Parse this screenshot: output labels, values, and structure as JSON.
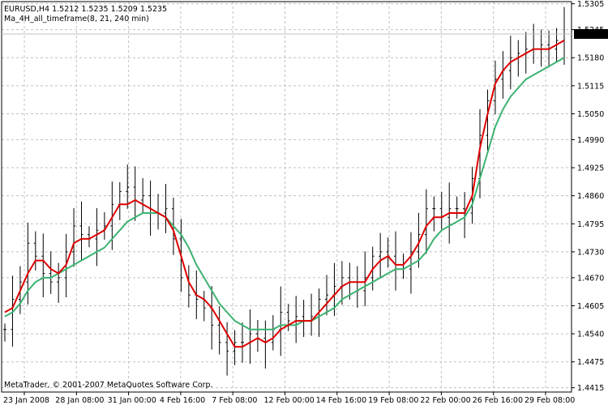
{
  "window": {
    "symbol_line": "EURUSD,H4  1.5212 1.5235 1.5209 1.5235",
    "indicator_line": "Ma_4H_all_timeframe(8, 21, 240 min)",
    "copyright": "MetaTrader, © 2001-2007 MetaQuotes Software Corp."
  },
  "colors": {
    "background": "#ffffff",
    "grid": "#c0c0c0",
    "bars": "#000000",
    "fast_ma": "#e00000",
    "slow_ma": "#3cb371",
    "price_line": "#c0c0c0",
    "price_tag_bg": "#000000",
    "price_tag_fg": "#ffffff"
  },
  "chart_data": {
    "type": "line",
    "symbol": "EURUSD",
    "timeframe": "H4",
    "ylim": [
      1.4405,
      1.531
    ],
    "y_ticks": [
      "1.5305",
      "1.5245",
      "1.5180",
      "1.5115",
      "1.5050",
      "1.4990",
      "1.4925",
      "1.4860",
      "1.4795",
      "1.4730",
      "1.4670",
      "1.4605",
      "1.4540",
      "1.4475",
      "1.4415"
    ],
    "x_ticks": [
      "23 Jan 2008",
      "28 Jan 08:00",
      "31 Jan 00:00",
      "4 Feb 16:00",
      "7 Feb 08:00",
      "12 Feb 00:00",
      "14 Feb 16:00",
      "19 Feb 08:00",
      "22 Feb 00:00",
      "26 Feb 16:00",
      "29 Feb 08:00"
    ],
    "current_price": "1.5235",
    "grid": true,
    "series": [
      {
        "name": "fast_ma",
        "color": "#e00000",
        "values": [
          1.459,
          1.46,
          1.464,
          1.468,
          1.471,
          1.471,
          1.469,
          1.468,
          1.47,
          1.475,
          1.476,
          1.476,
          1.477,
          1.478,
          1.481,
          1.484,
          1.484,
          1.485,
          1.484,
          1.483,
          1.482,
          1.481,
          1.478,
          1.472,
          1.466,
          1.463,
          1.462,
          1.46,
          1.457,
          1.454,
          1.451,
          1.451,
          1.452,
          1.453,
          1.452,
          1.453,
          1.455,
          1.456,
          1.457,
          1.457,
          1.457,
          1.459,
          1.461,
          1.463,
          1.465,
          1.466,
          1.466,
          1.466,
          1.469,
          1.471,
          1.472,
          1.47,
          1.47,
          1.472,
          1.475,
          1.479,
          1.481,
          1.481,
          1.482,
          1.482,
          1.482,
          1.486,
          1.497,
          1.505,
          1.512,
          1.515,
          1.517,
          1.518,
          1.519,
          1.52,
          1.52,
          1.52,
          1.521,
          1.522
        ]
      },
      {
        "name": "slow_ma",
        "color": "#3cb371",
        "values": [
          1.458,
          1.459,
          1.461,
          1.464,
          1.466,
          1.467,
          1.467,
          1.468,
          1.469,
          1.47,
          1.471,
          1.472,
          1.473,
          1.474,
          1.476,
          1.478,
          1.48,
          1.481,
          1.482,
          1.482,
          1.482,
          1.481,
          1.479,
          1.477,
          1.474,
          1.47,
          1.467,
          1.464,
          1.461,
          1.459,
          1.457,
          1.456,
          1.455,
          1.455,
          1.455,
          1.455,
          1.456,
          1.456,
          1.456,
          1.457,
          1.457,
          1.458,
          1.459,
          1.46,
          1.462,
          1.463,
          1.464,
          1.465,
          1.466,
          1.467,
          1.468,
          1.469,
          1.469,
          1.47,
          1.471,
          1.473,
          1.476,
          1.478,
          1.479,
          1.48,
          1.481,
          1.484,
          1.49,
          1.496,
          1.502,
          1.506,
          1.509,
          1.511,
          1.513,
          1.514,
          1.515,
          1.516,
          1.517,
          1.518
        ]
      },
      {
        "name": "price",
        "values": [
          1.455,
          1.462,
          1.466,
          1.475,
          1.472,
          1.468,
          1.466,
          1.467,
          1.473,
          1.479,
          1.477,
          1.476,
          1.478,
          1.479,
          1.484,
          1.487,
          1.488,
          1.485,
          1.486,
          1.482,
          1.482,
          1.483,
          1.476,
          1.467,
          1.463,
          1.462,
          1.46,
          1.456,
          1.452,
          1.45,
          1.452,
          1.452,
          1.454,
          1.453,
          1.452,
          1.455,
          1.459,
          1.457,
          1.458,
          1.457,
          1.458,
          1.462,
          1.463,
          1.465,
          1.467,
          1.466,
          1.464,
          1.467,
          1.472,
          1.473,
          1.472,
          1.47,
          1.469,
          1.473,
          1.477,
          1.483,
          1.483,
          1.481,
          1.483,
          1.483,
          1.482,
          1.49,
          1.5,
          1.508,
          1.513,
          1.515,
          1.518,
          1.519,
          1.52,
          1.52,
          1.521,
          1.52,
          1.522,
          1.5235
        ]
      }
    ]
  }
}
